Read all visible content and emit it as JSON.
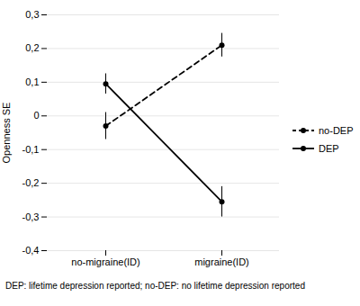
{
  "chart_data": {
    "type": "line",
    "categories": [
      "no-migraine(ID)",
      "migraine(ID)"
    ],
    "series": [
      {
        "name": "no-DEP",
        "color": "black",
        "line_style": "dashed",
        "marker": "circle",
        "values": [
          -0.03,
          0.21
        ],
        "errors": [
          0.04,
          0.035
        ]
      },
      {
        "name": "DEP",
        "color": "black",
        "line_style": "solid",
        "marker": "circle",
        "values": [
          0.095,
          -0.255
        ],
        "errors": [
          0.03,
          0.045
        ]
      }
    ],
    "ylabel": "Openness SE",
    "ylim": [
      -0.4,
      0.3
    ],
    "yticks": [
      {
        "value": -0.4,
        "label": "-0,4"
      },
      {
        "value": -0.3,
        "label": "-0,3"
      },
      {
        "value": -0.2,
        "label": "-0,2"
      },
      {
        "value": -0.1,
        "label": "-0,1"
      },
      0,
      {
        "value": 0.1,
        "label": "0,1"
      },
      {
        "value": 0.2,
        "label": "0,2"
      },
      {
        "value": 0.3,
        "label": "0,3"
      }
    ],
    "grid": true,
    "legend": "right",
    "caption": "DEP: lifetime depression reported; no-DEP: no lifetime depression reported"
  }
}
